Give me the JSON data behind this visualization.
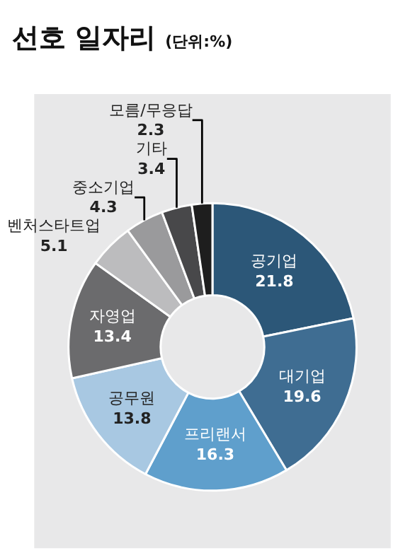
{
  "chart_data": {
    "type": "donut",
    "title": "선호 일자리",
    "subtitle": "(단위:%)",
    "categories": [
      "공기업",
      "대기업",
      "프리랜서",
      "공무원",
      "자영업",
      "벤처스타트업",
      "중소기업",
      "기타",
      "모름/무응답"
    ],
    "values": [
      21.8,
      19.6,
      16.3,
      13.8,
      13.4,
      5.1,
      4.3,
      3.4,
      2.3
    ],
    "colors": [
      "#2c5778",
      "#3f6d92",
      "#5f9fcc",
      "#a8c8e2",
      "#6b6b6d",
      "#bcbcbe",
      "#9a9a9c",
      "#48484a",
      "#1e1e1e"
    ],
    "data_labels": true
  }
}
